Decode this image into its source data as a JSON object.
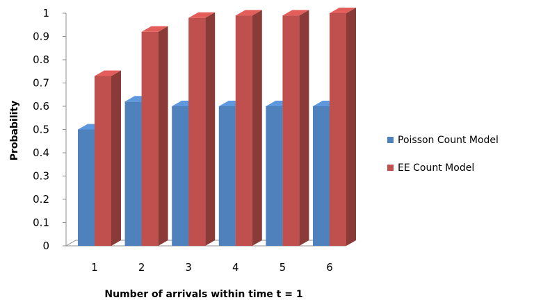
{
  "chart_data": {
    "type": "bar",
    "style": "3d-clustered-column",
    "xlabel": "Number of arrivals  within time t = 1",
    "ylabel": "Probability",
    "categories": [
      "1",
      "2",
      "3",
      "4",
      "5",
      "6"
    ],
    "ylim": [
      0,
      1
    ],
    "ytick_labels": [
      "0",
      "0.1",
      "0.2",
      "0.3",
      "0.4",
      "0.5",
      "0.6",
      "0.7",
      "0.8",
      "0.9",
      "1"
    ],
    "legend_position": "right",
    "gridlines": false,
    "series": [
      {
        "name": "Poisson Count Model",
        "color": "#4F81BD",
        "values": [
          0.5,
          0.62,
          0.6,
          0.6,
          0.6,
          0.6
        ]
      },
      {
        "name": "EE Count Model",
        "color": "#C0504D",
        "values": [
          0.73,
          0.92,
          0.98,
          0.99,
          0.99,
          1.0
        ]
      }
    ]
  }
}
